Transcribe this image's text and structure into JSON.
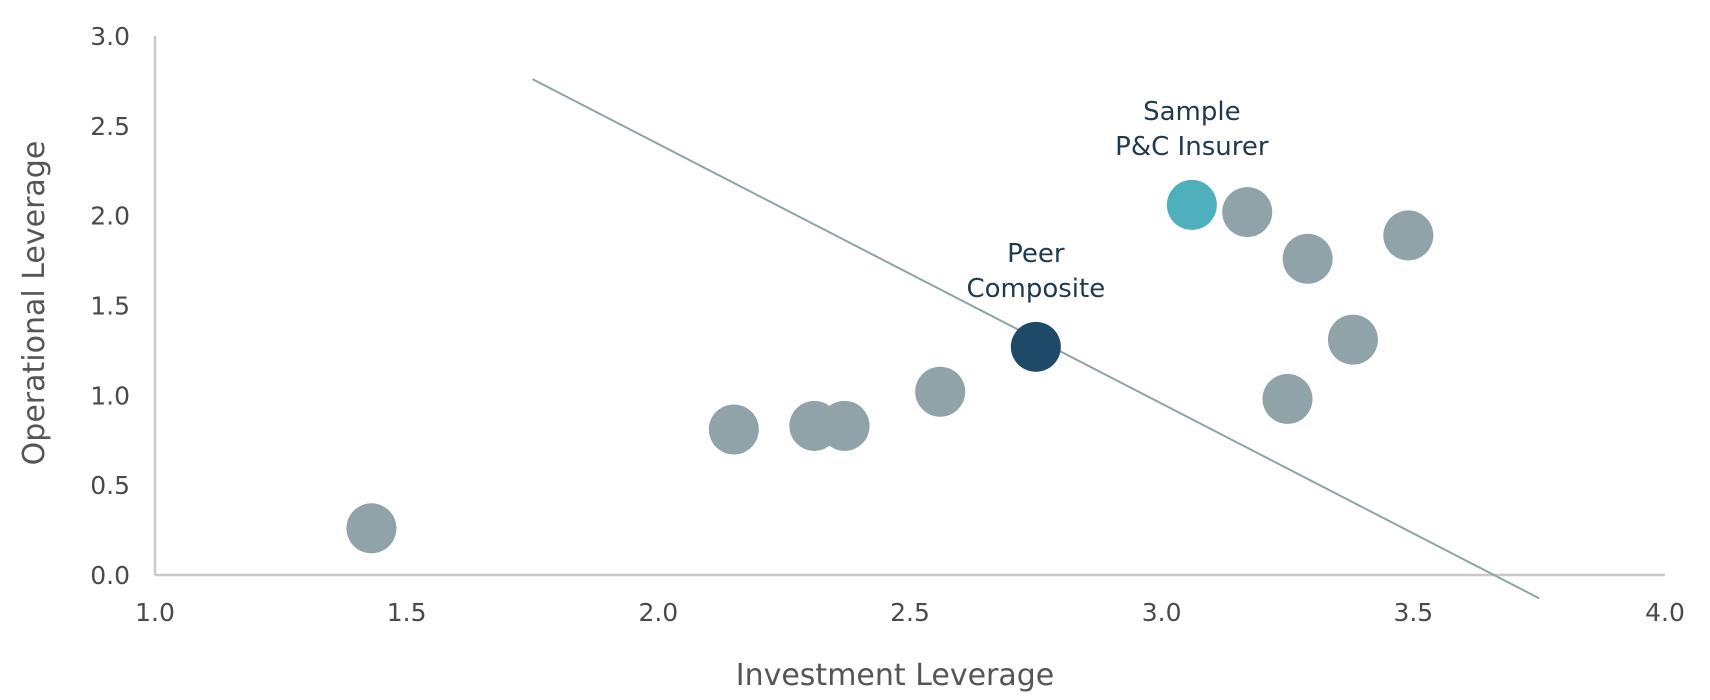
{
  "chart_data": {
    "type": "scatter",
    "title": "",
    "xlabel": "Investment Leverage",
    "ylabel": "Operational Leverage",
    "xlim": [
      1.0,
      4.0
    ],
    "ylim": [
      0.0,
      3.0
    ],
    "x_ticks": [
      "1.0",
      "1.5",
      "2.0",
      "2.5",
      "3.0",
      "3.5",
      "4.0"
    ],
    "y_ticks": [
      "0.0",
      "0.5",
      "1.0",
      "1.5",
      "2.0",
      "2.5",
      "3.0"
    ],
    "grid": false,
    "legend": "none",
    "colors": {
      "peer": "#8fa3a8",
      "composite": "#1e4a68",
      "sample": "#4eb0bb",
      "trendline": "#8fa3a8",
      "axis": "#c8c8c8"
    },
    "points": [
      {
        "x": 1.43,
        "y": 0.26,
        "group": "peer"
      },
      {
        "x": 2.15,
        "y": 0.81,
        "group": "peer"
      },
      {
        "x": 2.31,
        "y": 0.83,
        "group": "peer"
      },
      {
        "x": 2.37,
        "y": 0.83,
        "group": "peer"
      },
      {
        "x": 2.56,
        "y": 1.02,
        "group": "peer"
      },
      {
        "x": 2.75,
        "y": 1.27,
        "group": "composite",
        "label": [
          "Peer",
          "Composite"
        ]
      },
      {
        "x": 3.06,
        "y": 2.06,
        "group": "sample",
        "label": [
          "Sample",
          "P&C Insurer"
        ]
      },
      {
        "x": 3.17,
        "y": 2.02,
        "group": "peer"
      },
      {
        "x": 3.29,
        "y": 1.76,
        "group": "peer"
      },
      {
        "x": 3.25,
        "y": 0.98,
        "group": "peer"
      },
      {
        "x": 3.38,
        "y": 1.31,
        "group": "peer"
      },
      {
        "x": 3.49,
        "y": 1.89,
        "group": "peer"
      }
    ],
    "trendline": {
      "x": [
        1.75,
        3.75
      ],
      "y": [
        2.76,
        -0.13
      ]
    }
  }
}
